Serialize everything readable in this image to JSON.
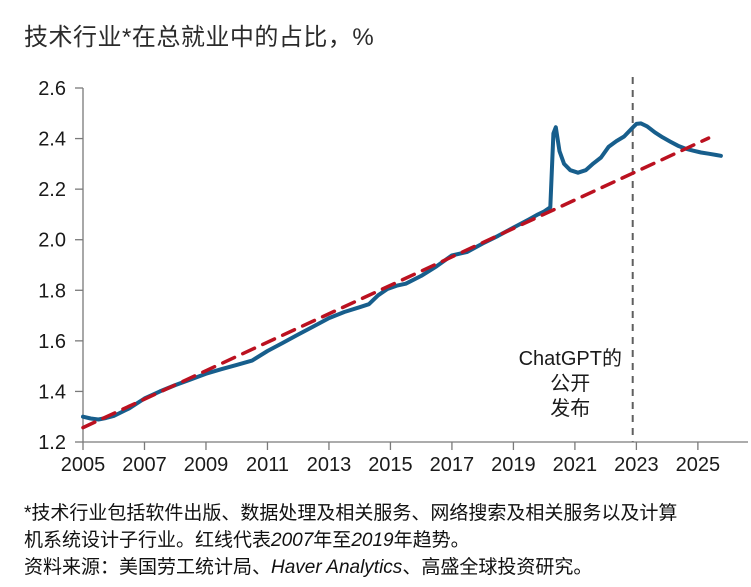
{
  "page": {
    "title": "技术行业*在总就业中的占比，%"
  },
  "chart_data": {
    "type": "line",
    "title": "技术行业*在总就业中的占比，%",
    "xlabel": "",
    "ylabel": "%",
    "grid": false,
    "legend": false,
    "xlim": [
      2005,
      2026.5
    ],
    "ylim": [
      1.2,
      2.6
    ],
    "x_ticks": [
      "2005",
      "2007",
      "2009",
      "2011",
      "2013",
      "2015",
      "2017",
      "2019",
      "2021",
      "2023",
      "2025"
    ],
    "y_ticks": [
      "1.2",
      "1.4",
      "1.6",
      "1.8",
      "2.0",
      "2.2",
      "2.4",
      "2.6"
    ],
    "series": [
      {
        "name": "技术行业在总就业中的占比",
        "style": "solid",
        "color": "#175e8c",
        "x": [
          2005,
          2005.25,
          2005.5,
          2005.75,
          2006,
          2006.5,
          2007,
          2007.5,
          2008,
          2008.5,
          2009,
          2009.5,
          2010,
          2010.5,
          2011,
          2011.5,
          2012,
          2012.5,
          2013,
          2013.5,
          2014,
          2014.3,
          2014.6,
          2014.9,
          2015.2,
          2015.5,
          2016,
          2016.5,
          2017,
          2017.5,
          2018,
          2018.5,
          2019,
          2019.5,
          2019.8,
          2020,
          2020.2,
          2020.3,
          2020.38,
          2020.5,
          2020.65,
          2020.85,
          2021.1,
          2021.35,
          2021.6,
          2021.85,
          2022.1,
          2022.35,
          2022.6,
          2022.85,
          2023,
          2023.15,
          2023.35,
          2023.6,
          2023.85,
          2024.1,
          2024.35,
          2024.6,
          2024.85,
          2025.1,
          2025.35,
          2025.6,
          2025.75
        ],
        "y": [
          1.3,
          1.293,
          1.289,
          1.295,
          1.303,
          1.333,
          1.372,
          1.4,
          1.425,
          1.447,
          1.47,
          1.488,
          1.505,
          1.522,
          1.56,
          1.592,
          1.625,
          1.657,
          1.69,
          1.714,
          1.733,
          1.745,
          1.78,
          1.805,
          1.818,
          1.826,
          1.857,
          1.895,
          1.938,
          1.952,
          1.985,
          2.015,
          2.048,
          2.08,
          2.1,
          2.112,
          2.128,
          2.42,
          2.445,
          2.35,
          2.3,
          2.275,
          2.265,
          2.275,
          2.302,
          2.325,
          2.368,
          2.39,
          2.408,
          2.44,
          2.458,
          2.46,
          2.448,
          2.425,
          2.405,
          2.388,
          2.372,
          2.36,
          2.352,
          2.345,
          2.34,
          2.335,
          2.332
        ]
      },
      {
        "name": "2007年至2019年趋势",
        "style": "dashed",
        "color": "#bb1120",
        "x": [
          2005,
          2025.35
        ],
        "y": [
          1.257,
          2.402
        ]
      }
    ],
    "vline": {
      "x": 2022.88,
      "color": "#5f5f5f",
      "label": "ChatGPT公开发布时间"
    },
    "annotation": {
      "lines": [
        "ChatGPT的",
        "公开",
        "发布"
      ],
      "x": 2020.85,
      "y": 1.505
    }
  },
  "footnote": {
    "segments": [
      {
        "text": "*技术行业包括软件出版、数据处理及相关服务、网络搜索及相关服务以及计算机系统设计子行业。红线代表",
        "italic": false
      },
      {
        "text": "2007",
        "italic": true
      },
      {
        "text": "年至",
        "italic": false
      },
      {
        "text": "2019",
        "italic": true
      },
      {
        "text": "年趋势。",
        "italic": false
      }
    ]
  },
  "source": {
    "segments": [
      {
        "text": "资料来源：美国劳工统计局、",
        "italic": false
      },
      {
        "text": "Haver Analytics",
        "italic": true
      },
      {
        "text": "、高盛全球投资研究。",
        "italic": false
      }
    ]
  }
}
